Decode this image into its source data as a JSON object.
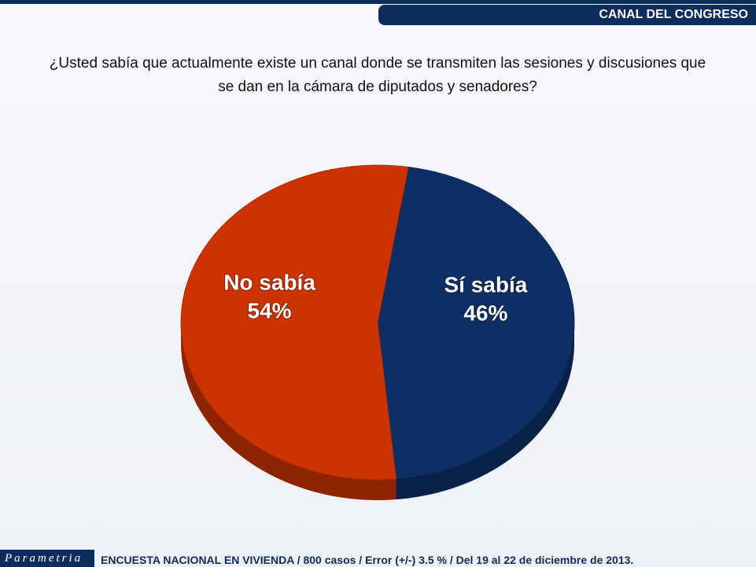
{
  "header": {
    "section": "CANAL DEL CONGRESO"
  },
  "chart_data": {
    "type": "pie",
    "title": "¿Usted sabía que actualmente existe un canal donde se transmiten las sesiones y discusiones que se dan en la cámara de diputados y senadores?",
    "categories": [
      "Sí sabía",
      "No sabía"
    ],
    "values": [
      46,
      54
    ],
    "value_labels": [
      "46%",
      "54%"
    ],
    "colors": [
      "#0e2f66",
      "#cc3300"
    ]
  },
  "footer": {
    "brand": "Parametria",
    "note": "ENCUESTA NACIONAL EN VIVIENDA / 800 casos / Error (+/-) 3.5 % / Del 19 al 22 de diciembre de 2013."
  }
}
